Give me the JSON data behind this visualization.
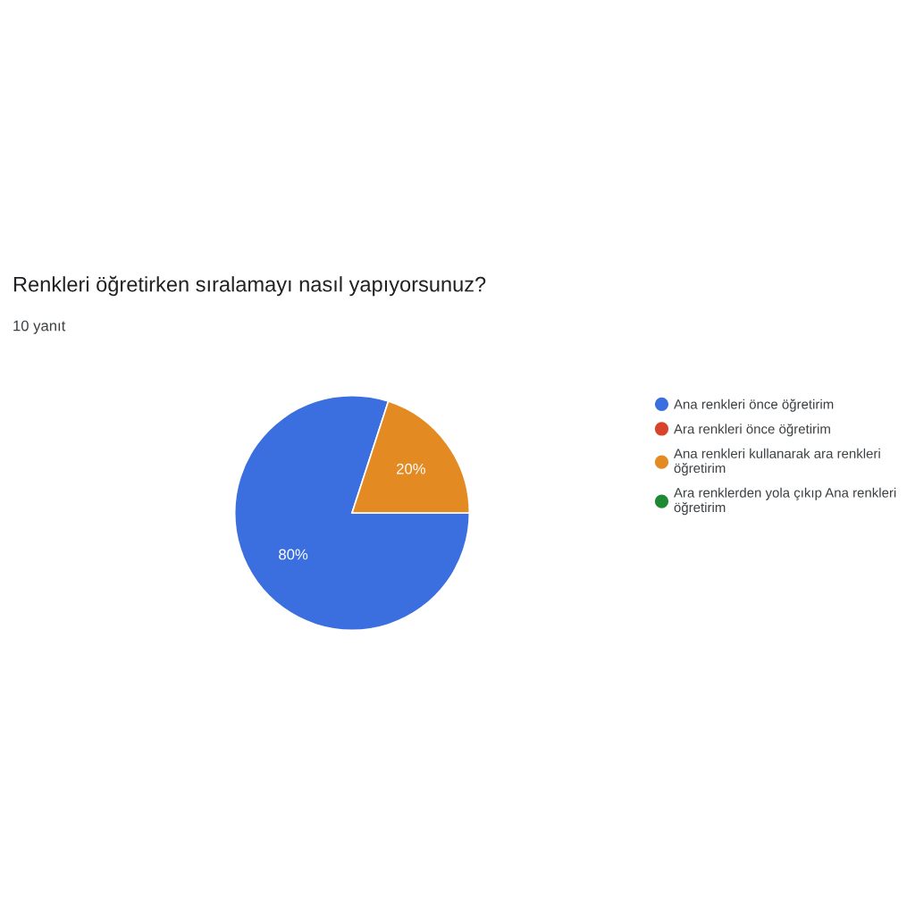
{
  "chart_data": {
    "type": "pie",
    "title": "Renkleri öğretirken sıralamayı nasıl yapıyorsunuz?",
    "subtitle": "10 yanıt",
    "categories": [
      "Ana renkleri önce öğretirim",
      "Ara renkleri önce öğretirim",
      "Ana renkleri kullanarak ara renkleri öğretirim",
      "Ara renklerden yola çıkıp Ana renkleri öğretirim"
    ],
    "values": [
      80,
      0,
      20,
      0
    ],
    "colors": [
      "#3b6fe0",
      "#d9432c",
      "#e38a22",
      "#1f8a33"
    ],
    "value_labels": [
      "80%",
      null,
      "20%",
      null
    ],
    "legend": "right"
  }
}
